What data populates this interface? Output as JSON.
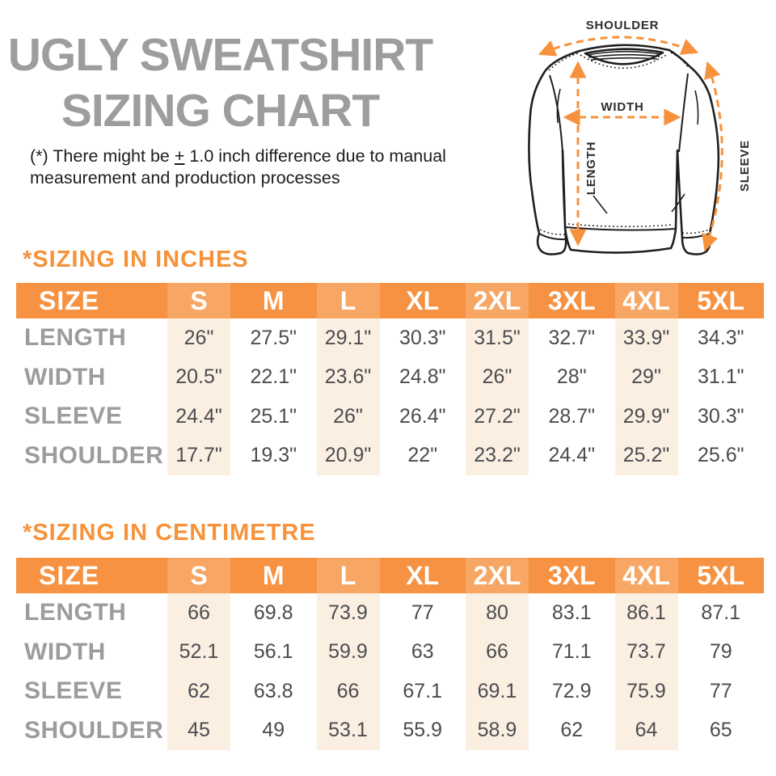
{
  "title": {
    "line1": "UGLY SWEATSHIRT",
    "line2": "SIZING CHART"
  },
  "disclaimer": {
    "prefix": "(*) There might be ",
    "pm": "+",
    "suffix": " 1.0 inch difference due to manual measurement and production processes"
  },
  "diagram": {
    "labels": {
      "shoulder": "SHOULDER",
      "width": "WIDTH",
      "length": "LENGTH",
      "sleeve": "SLEEVE"
    },
    "arrow_color": "#F6913C",
    "outline_color": "#1F1F1F"
  },
  "colors": {
    "orange": "#F69241",
    "orange_light": "#F8A663",
    "peach": "#FBEFE2",
    "heading_orange": "#F6923A",
    "title_gray": "#9D9D9D",
    "label_gray": "#9C9C9C",
    "value_gray": "#4C4C50"
  },
  "tables": {
    "inches": {
      "heading": "*SIZING IN INCHES",
      "size_header": "SIZE",
      "columns": [
        "S",
        "M",
        "L",
        "XL",
        "2XL",
        "3XL",
        "4XL",
        "5XL"
      ],
      "rows": [
        {
          "label": "LENGTH",
          "values": [
            "26\"",
            "27.5\"",
            "29.1\"",
            "30.3\"",
            "31.5\"",
            "32.7\"",
            "33.9\"",
            "34.3\""
          ]
        },
        {
          "label": "WIDTH",
          "values": [
            "20.5\"",
            "22.1\"",
            "23.6\"",
            "24.8\"",
            "26\"",
            "28\"",
            "29\"",
            "31.1\""
          ]
        },
        {
          "label": "SLEEVE",
          "values": [
            "24.4\"",
            "25.1\"",
            "26\"",
            "26.4\"",
            "27.2\"",
            "28.7\"",
            "29.9\"",
            "30.3\""
          ]
        },
        {
          "label": "SHOULDER",
          "values": [
            "17.7\"",
            "19.3\"",
            "20.9\"",
            "22\"",
            "23.2\"",
            "24.4\"",
            "25.2\"",
            "25.6\""
          ]
        }
      ]
    },
    "centimetre": {
      "heading": "*SIZING IN CENTIMETRE",
      "size_header": "SIZE",
      "columns": [
        "S",
        "M",
        "L",
        "XL",
        "2XL",
        "3XL",
        "4XL",
        "5XL"
      ],
      "rows": [
        {
          "label": "LENGTH",
          "values": [
            "66",
            "69.8",
            "73.9",
            "77",
            "80",
            "83.1",
            "86.1",
            "87.1"
          ]
        },
        {
          "label": "WIDTH",
          "values": [
            "52.1",
            "56.1",
            "59.9",
            "63",
            "66",
            "71.1",
            "73.7",
            "79"
          ]
        },
        {
          "label": "SLEEVE",
          "values": [
            "62",
            "63.8",
            "66",
            "67.1",
            "69.1",
            "72.9",
            "75.9",
            "77"
          ]
        },
        {
          "label": "SHOULDER",
          "values": [
            "45",
            "49",
            "53.1",
            "55.9",
            "58.9",
            "62",
            "64",
            "65"
          ]
        }
      ]
    }
  }
}
